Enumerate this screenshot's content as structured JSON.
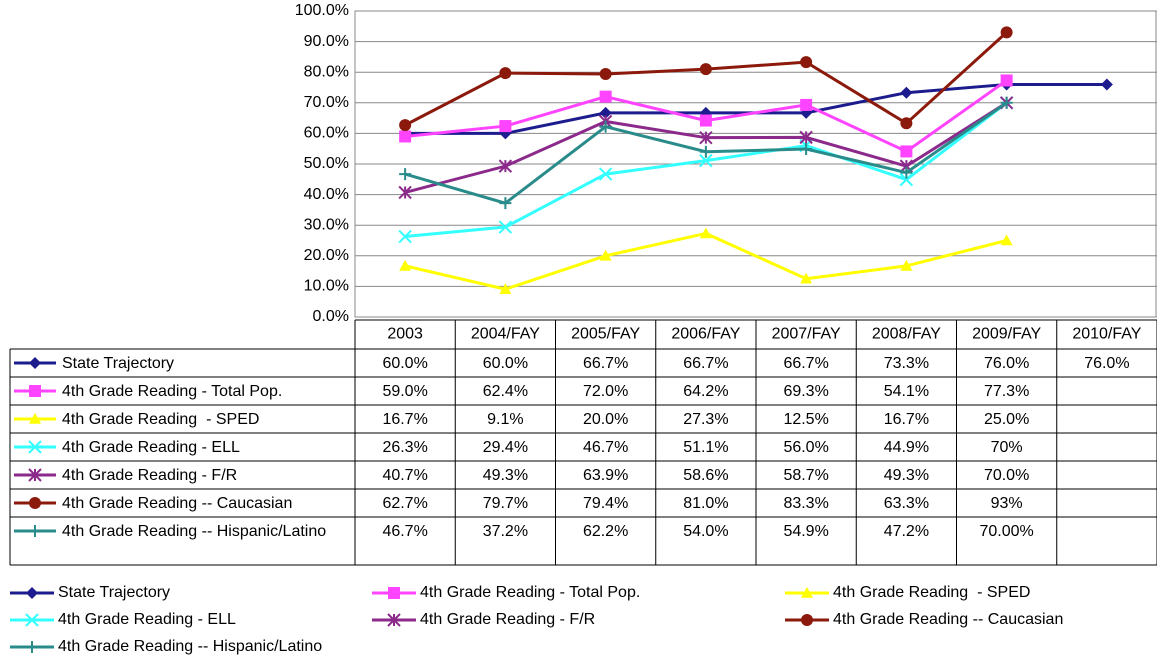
{
  "chart_data": {
    "type": "line",
    "categories": [
      "2003",
      "2004/FAY",
      "2005/FAY",
      "2006/FAY",
      "2007/FAY",
      "2008/FAY",
      "2009/FAY",
      "2010/FAY"
    ],
    "ylim": [
      0,
      100
    ],
    "yticks": [
      {
        "value": 0,
        "label": "0.0%"
      },
      {
        "value": 10,
        "label": "10.0%"
      },
      {
        "value": 20,
        "label": "20.0%"
      },
      {
        "value": 30,
        "label": "30.0%"
      },
      {
        "value": 40,
        "label": "40.0%"
      },
      {
        "value": 50,
        "label": "50.0%"
      },
      {
        "value": 60,
        "label": "60.0%"
      },
      {
        "value": 70,
        "label": "70.0%"
      },
      {
        "value": 80,
        "label": "80.0%"
      },
      {
        "value": 90,
        "label": "90.0%"
      },
      {
        "value": 100,
        "label": "100.0%"
      }
    ],
    "grid": true,
    "legend": "bottom",
    "series": [
      {
        "name": "State Trajectory",
        "color": "#1c1c8e",
        "marker": "diamond",
        "values": [
          60.0,
          60.0,
          66.7,
          66.7,
          66.7,
          73.3,
          76.0,
          76.0
        ],
        "value_labels": [
          "60.0%",
          "60.0%",
          "66.7%",
          "66.7%",
          "66.7%",
          "73.3%",
          "76.0%",
          "76.0%"
        ]
      },
      {
        "name": "4th Grade Reading - Total Pop.",
        "color": "#ff44ff",
        "marker": "square",
        "values": [
          59.0,
          62.4,
          72.0,
          64.2,
          69.3,
          54.1,
          77.3,
          null
        ],
        "value_labels": [
          "59.0%",
          "62.4%",
          "72.0%",
          "64.2%",
          "69.3%",
          "54.1%",
          "77.3%",
          null
        ]
      },
      {
        "name": "4th Grade Reading  - SPED",
        "color": "#ffff00",
        "marker": "triangle",
        "values": [
          16.7,
          9.1,
          20.0,
          27.3,
          12.5,
          16.7,
          25.0,
          null
        ],
        "value_labels": [
          "16.7%",
          "9.1%",
          "20.0%",
          "27.3%",
          "12.5%",
          "16.7%",
          "25.0%",
          null
        ]
      },
      {
        "name": "4th Grade Reading - ELL",
        "color": "#33ffff",
        "marker": "x",
        "values": [
          26.3,
          29.4,
          46.7,
          51.1,
          56.0,
          44.9,
          70,
          null
        ],
        "value_labels": [
          "26.3%",
          "29.4%",
          "46.7%",
          "51.1%",
          "56.0%",
          "44.9%",
          "70%",
          null
        ]
      },
      {
        "name": "4th Grade Reading - F/R",
        "color": "#8b2a8b",
        "marker": "asterisk",
        "values": [
          40.7,
          49.3,
          63.9,
          58.6,
          58.7,
          49.3,
          70.0,
          null
        ],
        "value_labels": [
          "40.7%",
          "49.3%",
          "63.9%",
          "58.6%",
          "58.7%",
          "49.3%",
          "70.0%",
          null
        ]
      },
      {
        "name": "4th Grade Reading -- Caucasian",
        "color": "#8b1a0c",
        "marker": "circle",
        "values": [
          62.7,
          79.7,
          79.4,
          81.0,
          83.3,
          63.3,
          93,
          null
        ],
        "value_labels": [
          "62.7%",
          "79.7%",
          "79.4%",
          "81.0%",
          "83.3%",
          "63.3%",
          "93%",
          null
        ]
      },
      {
        "name": "4th Grade Reading -- Hispanic/Latino",
        "color": "#2a8b8b",
        "marker": "plus",
        "values": [
          46.7,
          37.2,
          62.2,
          54.0,
          54.9,
          47.2,
          70.0,
          null
        ],
        "value_labels": [
          "46.7%",
          "37.2%",
          "62.2%",
          "54.0%",
          "54.9%",
          "47.2%",
          "70.00%",
          null
        ]
      }
    ]
  }
}
